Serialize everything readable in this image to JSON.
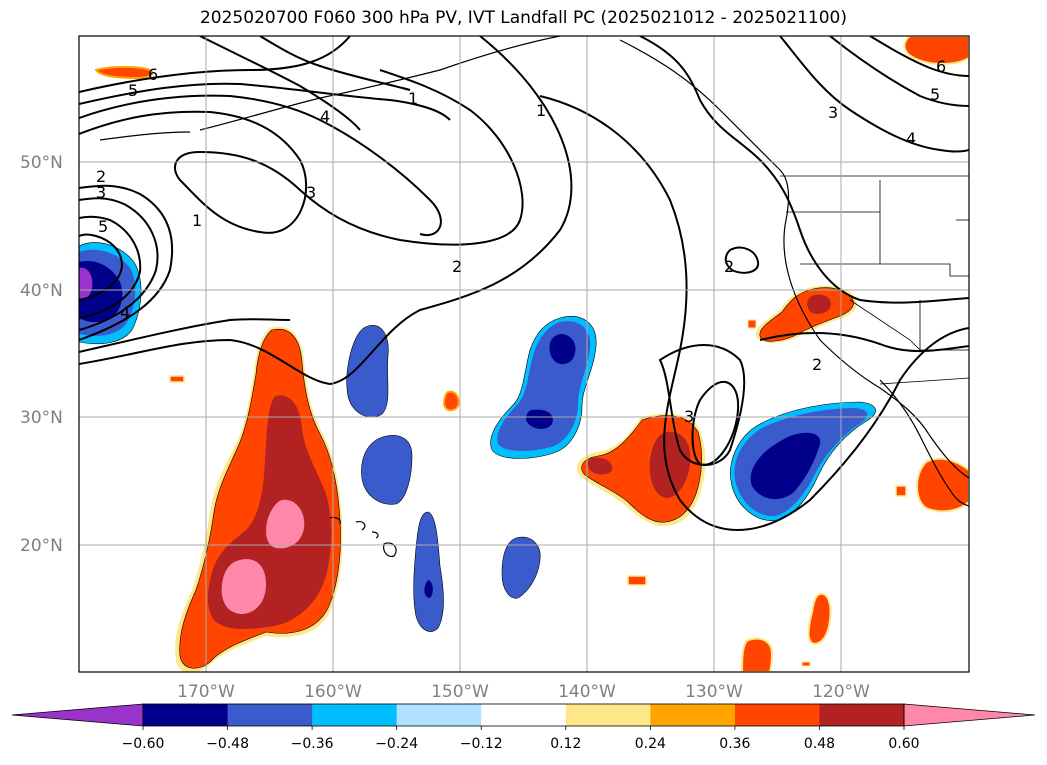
{
  "title": "2025020700 F060 300 hPa PV, IVT Landfall PC (2025021012 - 2025021100)",
  "lat_labels": [
    "50°N",
    "40°N",
    "30°N",
    "20°N"
  ],
  "lon_labels": [
    "170°W",
    "160°W",
    "150°W",
    "140°W",
    "130°W",
    "120°W"
  ],
  "contour_labels": [
    "6",
    "5",
    "4",
    "1",
    "1",
    "3",
    "2",
    "3",
    "5",
    "1",
    "2",
    "4",
    "3",
    "2",
    "2",
    "3",
    "6",
    "5",
    "4"
  ],
  "colorbar": {
    "colors": [
      "#9933cc",
      "#00008b",
      "#3a5bcc",
      "#00bfff",
      "#b0e2ff",
      "#ffffff",
      "#ffe88a",
      "#ffa500",
      "#ff4500",
      "#b22222",
      "#ff88aa"
    ],
    "tick_labels": [
      "−0.60",
      "−0.48",
      "−0.36",
      "−0.24",
      "−0.12",
      "0.12",
      "0.24",
      "0.36",
      "0.48",
      "0.60"
    ]
  },
  "colors": {
    "pos_low": "#ffe88a",
    "pos_mid": "#ffa500",
    "pos_high": "#ff4500",
    "pos_higher": "#b22222",
    "pos_max": "#ff88aa",
    "neg_low": "#00bfff",
    "neg_mid": "#3a5bcc",
    "neg_high": "#00008b",
    "neg_max": "#9933cc"
  }
}
